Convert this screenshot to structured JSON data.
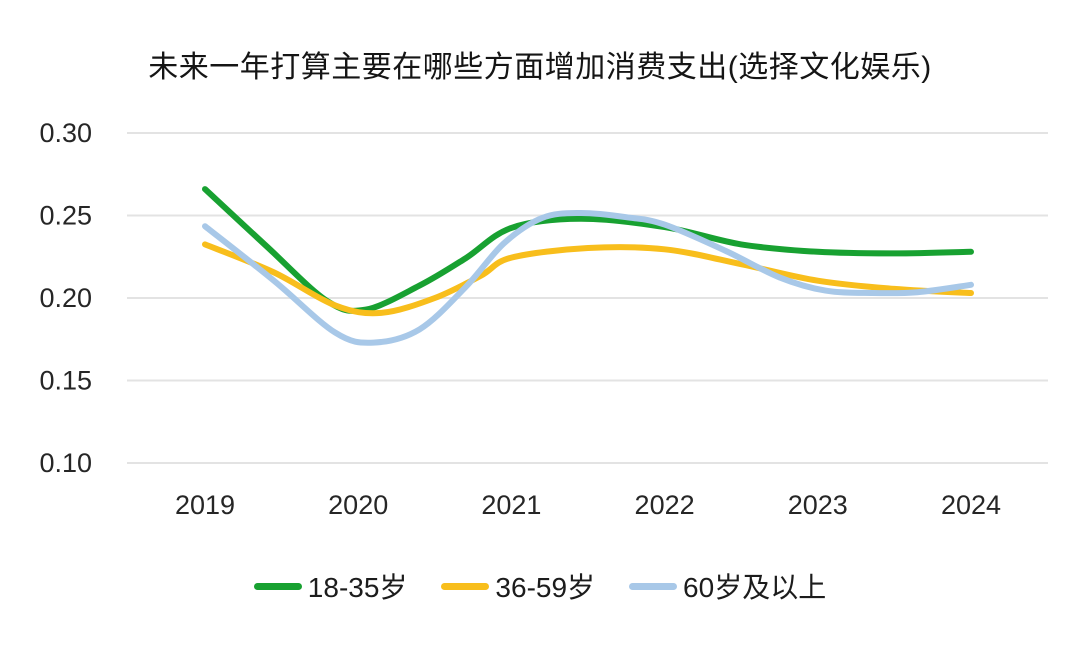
{
  "chart_data": {
    "type": "line",
    "title": "未来一年打算主要在哪些方面增加消费支出(选择文化娱乐)",
    "xlabel": "",
    "ylabel": "",
    "categories": [
      "2019",
      "2020",
      "2021",
      "2022",
      "2023",
      "2024"
    ],
    "x_values": [
      2019,
      2020,
      2021,
      2022,
      2023,
      2024
    ],
    "y_ticks": [
      "0.30",
      "0.25",
      "0.20",
      "0.15",
      "0.10"
    ],
    "ylim": [
      0.1,
      0.3
    ],
    "grid": true,
    "legend_position": "bottom",
    "colors": {
      "grid": "#E3E3E3",
      "tick_text": "#262626",
      "title_text": "#151515"
    },
    "series": [
      {
        "name": "18-35岁",
        "color": "#18A131",
        "values": [
          0.265,
          0.193,
          0.243,
          0.243,
          0.228,
          0.228
        ],
        "curve": [
          [
            2019.0,
            0.266
          ],
          [
            2019.4,
            0.2315
          ],
          [
            2019.8,
            0.198
          ],
          [
            2020.05,
            0.193
          ],
          [
            2020.4,
            0.2075
          ],
          [
            2020.7,
            0.224
          ],
          [
            2021.0,
            0.2425
          ],
          [
            2021.45,
            0.248
          ],
          [
            2022.0,
            0.243
          ],
          [
            2022.5,
            0.2325
          ],
          [
            2023.0,
            0.228
          ],
          [
            2023.5,
            0.227
          ],
          [
            2024.0,
            0.228
          ]
        ]
      },
      {
        "name": "36-59岁",
        "color": "#F8BE1C",
        "values": [
          0.232,
          0.191,
          0.225,
          0.23,
          0.211,
          0.203
        ],
        "curve": [
          [
            2019.0,
            0.2325
          ],
          [
            2019.45,
            0.2155
          ],
          [
            2019.85,
            0.1955
          ],
          [
            2020.15,
            0.191
          ],
          [
            2020.5,
            0.2
          ],
          [
            2020.8,
            0.2135
          ],
          [
            2021.0,
            0.2245
          ],
          [
            2021.5,
            0.2303
          ],
          [
            2022.0,
            0.2295
          ],
          [
            2022.5,
            0.2205
          ],
          [
            2023.0,
            0.2105
          ],
          [
            2023.5,
            0.2055
          ],
          [
            2024.0,
            0.203
          ]
        ]
      },
      {
        "name": "60岁及以上",
        "color": "#A8C8E8",
        "values": [
          0.243,
          0.173,
          0.244,
          0.245,
          0.205,
          0.208
        ],
        "curve": [
          [
            2019.0,
            0.2435
          ],
          [
            2019.45,
            0.2105
          ],
          [
            2019.85,
            0.179
          ],
          [
            2020.1,
            0.173
          ],
          [
            2020.4,
            0.181
          ],
          [
            2020.7,
            0.2065
          ],
          [
            2020.95,
            0.233
          ],
          [
            2021.2,
            0.2485
          ],
          [
            2021.45,
            0.2515
          ],
          [
            2021.75,
            0.249
          ],
          [
            2022.0,
            0.2445
          ],
          [
            2022.4,
            0.2285
          ],
          [
            2022.75,
            0.2125
          ],
          [
            2023.05,
            0.2045
          ],
          [
            2023.35,
            0.203
          ],
          [
            2023.65,
            0.2035
          ],
          [
            2024.0,
            0.208
          ]
        ]
      }
    ]
  }
}
